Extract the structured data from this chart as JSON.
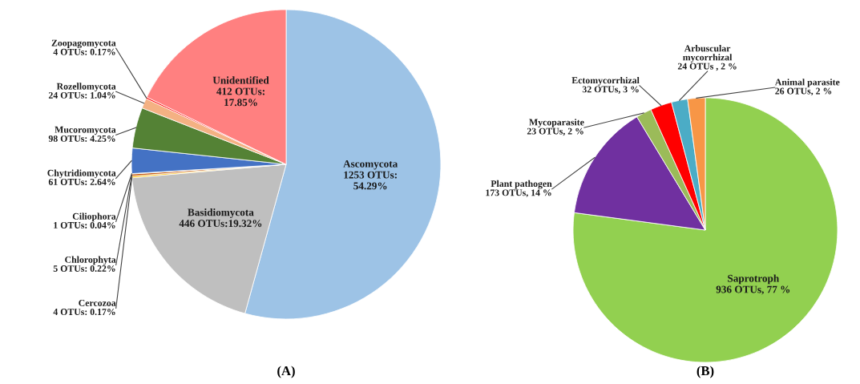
{
  "chart_data": [
    {
      "type": "pie",
      "title": "(A)",
      "categories": [
        "Ascomycota",
        "Basidiomycota",
        "Cercozoa",
        "Chlorophyta",
        "Ciliophora",
        "Chytridiomycota",
        "Mucoromycota",
        "Rozellomycota",
        "Zoopagomycota",
        "Unidentified"
      ],
      "values": [
        1253,
        446,
        4,
        5,
        1,
        61,
        98,
        24,
        4,
        412
      ],
      "colors": [
        "#9dc3e6",
        "#bfbfbf",
        "#ffc000",
        "#c55a11",
        "#70ad47",
        "#4472c4",
        "#548235",
        "#f4b183",
        "#ff0000",
        "#ff8080"
      ],
      "value_labels": [
        "1253 OTUs: 54.29%",
        "446 OTUs:19.32%",
        "4 OTUs: 0.17%",
        "5 OTUs: 0.22%",
        "1 OTUs: 0.04%",
        "61 OTUs: 2.64%",
        "98 OTUs: 4.25%",
        "24 OTUs: 1.04%",
        "4 OTUs: 0.17%",
        "412 OTUs: 17.85%"
      ]
    },
    {
      "type": "pie",
      "title": "(B)",
      "categories": [
        "Saprotroph",
        "Plant pathogen",
        "Mycoparasite",
        "Ectomycorrhizal",
        "Arbuscular mycorrhizal",
        "Animal parasite"
      ],
      "values": [
        936,
        173,
        23,
        32,
        24,
        26
      ],
      "colors": [
        "#92d050",
        "#7030a0",
        "#9bbb59",
        "#ff0000",
        "#4bacc6",
        "#f79646"
      ],
      "value_labels": [
        "936 OTUs, 77 %",
        "173 OTUs, 14 %",
        "23 OTUs, 2 %",
        "32 OTUs, 3 %",
        "24 OTUs , 2 %",
        "26 OTUs, 2 %"
      ]
    }
  ]
}
